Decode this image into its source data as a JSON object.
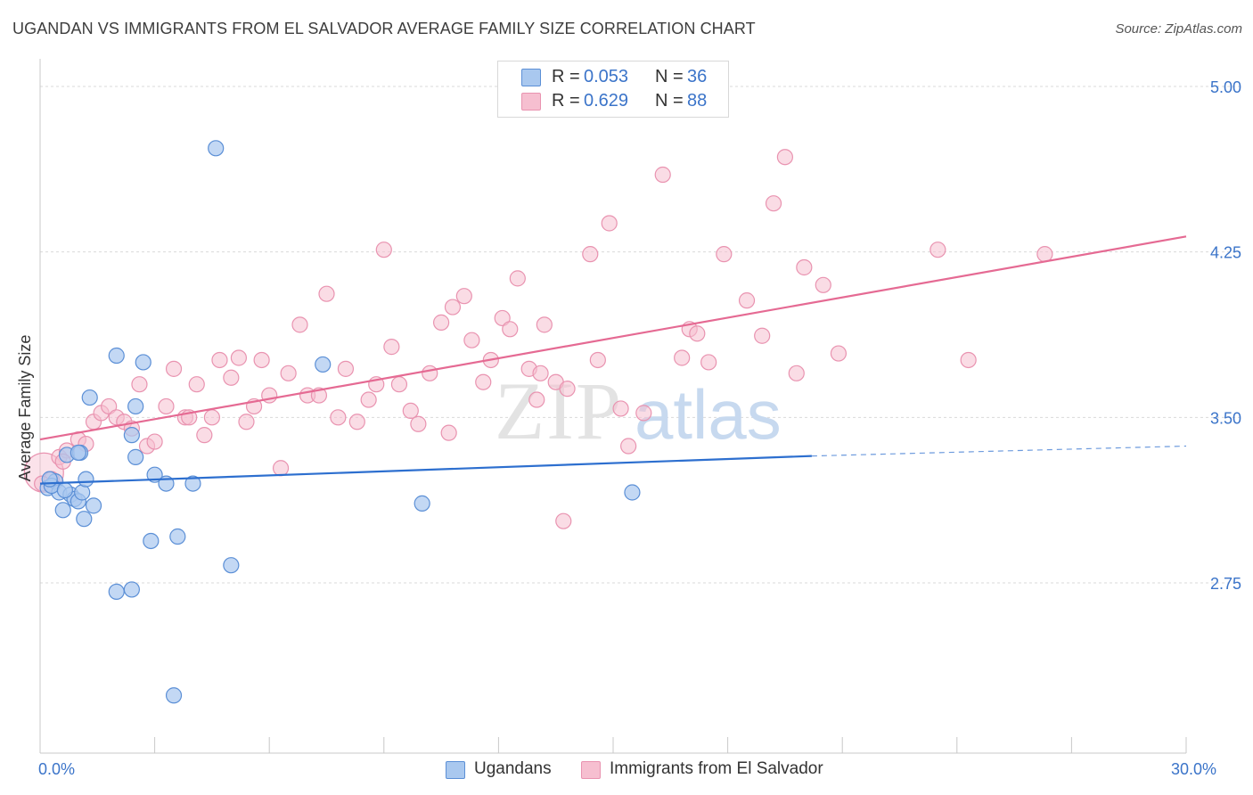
{
  "header": {
    "title": "UGANDAN VS IMMIGRANTS FROM EL SALVADOR AVERAGE FAMILY SIZE CORRELATION CHART",
    "source": "Source: ZipAtlas.com"
  },
  "legend": {
    "ugandans": {
      "r_label": "R = ",
      "r_value": "0.053",
      "n_label": "N = ",
      "n_value": "36"
    },
    "elsalvador": {
      "r_label": "R = ",
      "r_value": "0.629",
      "n_label": "N = ",
      "n_value": "88"
    }
  },
  "bottom_legend": {
    "ugandans": "Ugandans",
    "elsalvador": "Immigrants from El Salvador"
  },
  "watermark": {
    "zip": "ZIP",
    "atlas": "atlas"
  },
  "colors": {
    "blue_fill": "#a9c8ef",
    "blue_stroke": "#5b8fd6",
    "blue_line": "#2d6fcf",
    "pink_fill": "#f6bfd0",
    "pink_stroke": "#e993b0",
    "pink_line": "#e56a93",
    "tick_label": "#3b74c9",
    "grid": "#d9d9d9"
  },
  "chart_data": {
    "type": "scatter",
    "title": "UGANDAN VS IMMIGRANTS FROM EL SALVADOR AVERAGE FAMILY SIZE CORRELATION CHART",
    "xlabel": "",
    "ylabel": "Average Family Size",
    "xlim": [
      0,
      30
    ],
    "ylim": [
      2.0,
      5.2
    ],
    "x_tick_labels": [
      "0.0%",
      "30.0%"
    ],
    "x_tick_values": [
      0,
      30
    ],
    "y_ticks": [
      5.0,
      4.25,
      3.5,
      2.75
    ],
    "y_tick_labels": [
      "5.00",
      "4.25",
      "3.50",
      "2.75"
    ],
    "grid": true,
    "series": [
      {
        "name": "Ugandans",
        "color": "blue",
        "trend": {
          "x": [
            0,
            20.2
          ],
          "y": [
            3.2,
            3.325
          ],
          "dashed_to": [
            30,
            3.37
          ]
        },
        "points": [
          [
            0.2,
            3.18
          ],
          [
            0.4,
            3.21
          ],
          [
            0.5,
            3.16
          ],
          [
            0.6,
            3.08
          ],
          [
            0.7,
            3.33
          ],
          [
            0.8,
            3.15
          ],
          [
            0.9,
            3.13
          ],
          [
            1.0,
            3.12
          ],
          [
            1.05,
            3.34
          ],
          [
            1.1,
            3.16
          ],
          [
            1.15,
            3.04
          ],
          [
            1.2,
            3.22
          ],
          [
            1.3,
            3.59
          ],
          [
            1.4,
            3.1
          ],
          [
            2.0,
            2.71
          ],
          [
            2.4,
            3.42
          ],
          [
            2.0,
            3.78
          ],
          [
            2.4,
            2.72
          ],
          [
            2.5,
            3.55
          ],
          [
            2.5,
            3.32
          ],
          [
            2.7,
            3.75
          ],
          [
            2.9,
            2.94
          ],
          [
            3.0,
            3.24
          ],
          [
            3.3,
            3.2
          ],
          [
            3.6,
            2.96
          ],
          [
            3.5,
            2.24
          ],
          [
            4.0,
            3.2
          ],
          [
            4.6,
            4.72
          ],
          [
            5.0,
            2.83
          ],
          [
            7.4,
            3.74
          ],
          [
            10.0,
            3.11
          ],
          [
            15.5,
            3.16
          ],
          [
            0.3,
            3.19
          ],
          [
            0.25,
            3.22
          ],
          [
            1.0,
            3.34
          ],
          [
            0.65,
            3.17
          ]
        ]
      },
      {
        "name": "Immigrants from El Salvador",
        "color": "pink",
        "trend": {
          "x": [
            0,
            30
          ],
          "y": [
            3.4,
            4.32
          ]
        },
        "points": [
          [
            0.1,
            3.25
          ],
          [
            0.3,
            3.22
          ],
          [
            0.5,
            3.32
          ],
          [
            0.7,
            3.35
          ],
          [
            1.0,
            3.4
          ],
          [
            1.2,
            3.38
          ],
          [
            1.4,
            3.48
          ],
          [
            1.6,
            3.52
          ],
          [
            1.8,
            3.55
          ],
          [
            2.0,
            3.5
          ],
          [
            2.2,
            3.48
          ],
          [
            2.4,
            3.45
          ],
          [
            2.6,
            3.65
          ],
          [
            2.8,
            3.37
          ],
          [
            3.0,
            3.39
          ],
          [
            3.3,
            3.55
          ],
          [
            3.5,
            3.72
          ],
          [
            3.8,
            3.5
          ],
          [
            3.9,
            3.5
          ],
          [
            4.1,
            3.65
          ],
          [
            4.3,
            3.42
          ],
          [
            4.5,
            3.5
          ],
          [
            4.7,
            3.76
          ],
          [
            5.0,
            3.68
          ],
          [
            5.2,
            3.77
          ],
          [
            5.4,
            3.48
          ],
          [
            5.6,
            3.55
          ],
          [
            5.8,
            3.76
          ],
          [
            6.0,
            3.6
          ],
          [
            6.3,
            3.27
          ],
          [
            6.5,
            3.7
          ],
          [
            6.8,
            3.92
          ],
          [
            7.0,
            3.6
          ],
          [
            7.3,
            3.6
          ],
          [
            7.5,
            4.06
          ],
          [
            7.8,
            3.5
          ],
          [
            8.0,
            3.72
          ],
          [
            8.3,
            3.48
          ],
          [
            8.6,
            3.58
          ],
          [
            8.8,
            3.65
          ],
          [
            9.0,
            4.26
          ],
          [
            9.2,
            3.82
          ],
          [
            9.4,
            3.65
          ],
          [
            9.7,
            3.53
          ],
          [
            9.9,
            3.47
          ],
          [
            10.2,
            3.7
          ],
          [
            10.5,
            3.93
          ],
          [
            10.7,
            3.43
          ],
          [
            10.8,
            4.0
          ],
          [
            11.1,
            4.05
          ],
          [
            11.3,
            3.85
          ],
          [
            11.6,
            3.66
          ],
          [
            11.8,
            3.76
          ],
          [
            12.1,
            3.95
          ],
          [
            12.3,
            3.9
          ],
          [
            12.5,
            4.13
          ],
          [
            12.8,
            3.72
          ],
          [
            13.0,
            3.58
          ],
          [
            13.1,
            3.7
          ],
          [
            13.2,
            3.92
          ],
          [
            13.5,
            3.66
          ],
          [
            13.7,
            3.03
          ],
          [
            13.8,
            3.63
          ],
          [
            14.4,
            4.24
          ],
          [
            14.6,
            3.76
          ],
          [
            14.9,
            4.38
          ],
          [
            15.2,
            3.54
          ],
          [
            15.4,
            3.37
          ],
          [
            15.8,
            3.52
          ],
          [
            16.3,
            4.6
          ],
          [
            16.8,
            3.77
          ],
          [
            17.0,
            3.9
          ],
          [
            17.2,
            3.88
          ],
          [
            17.5,
            3.75
          ],
          [
            17.9,
            4.24
          ],
          [
            18.5,
            4.03
          ],
          [
            18.9,
            3.87
          ],
          [
            19.2,
            4.47
          ],
          [
            19.5,
            4.68
          ],
          [
            19.8,
            3.7
          ],
          [
            20.0,
            4.18
          ],
          [
            20.5,
            4.1
          ],
          [
            20.9,
            3.79
          ],
          [
            23.5,
            4.26
          ],
          [
            24.3,
            3.76
          ],
          [
            26.3,
            4.24
          ],
          [
            0.05,
            3.2
          ],
          [
            0.6,
            3.3
          ]
        ]
      }
    ]
  }
}
